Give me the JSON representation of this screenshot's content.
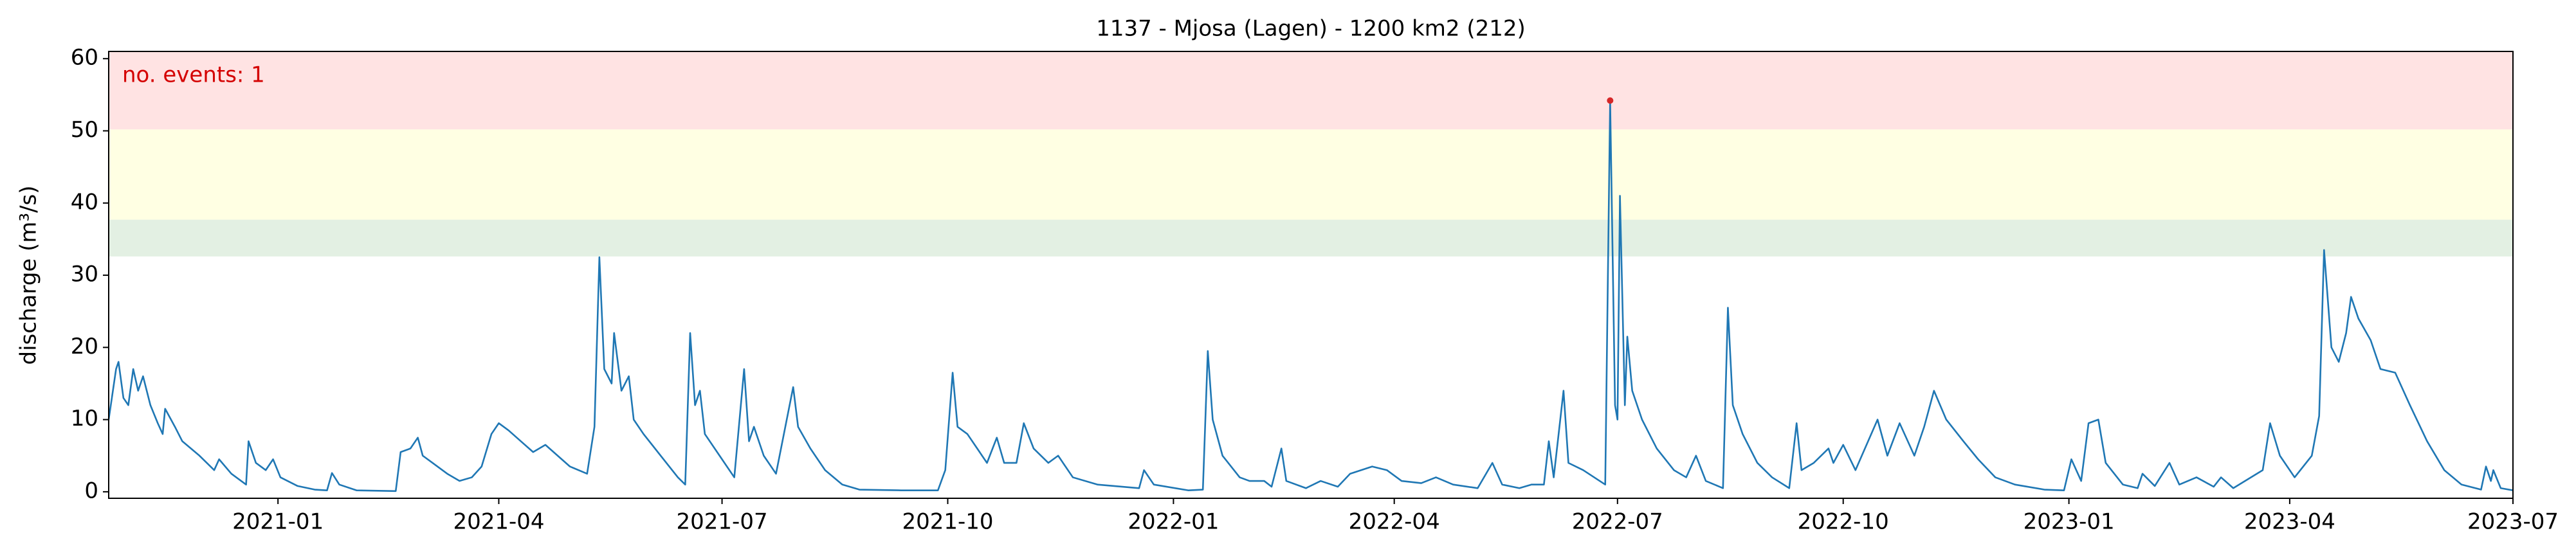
{
  "chart_data": {
    "type": "line",
    "title": "1137 - Mjosa (Lagen) - 1200 km2 (212)",
    "ylabel": "discharge (m³/s)",
    "annotation": "no. events: 1",
    "annotation_color": "#d40000",
    "color": "#1f77b4",
    "xlim": [
      "2020-10-24",
      "2023-07-01"
    ],
    "ylim": [
      -0.9,
      61
    ],
    "yticks": [
      0,
      10,
      20,
      30,
      40,
      50,
      60
    ],
    "xticks": [
      {
        "value": "2021-01-01",
        "label": "2021-01"
      },
      {
        "value": "2021-04-01",
        "label": "2021-04"
      },
      {
        "value": "2021-07-01",
        "label": "2021-07"
      },
      {
        "value": "2021-10-01",
        "label": "2021-10"
      },
      {
        "value": "2022-01-01",
        "label": "2022-01"
      },
      {
        "value": "2022-04-01",
        "label": "2022-04"
      },
      {
        "value": "2022-07-01",
        "label": "2022-07"
      },
      {
        "value": "2022-10-01",
        "label": "2022-10"
      },
      {
        "value": "2023-01-01",
        "label": "2023-01"
      },
      {
        "value": "2023-04-01",
        "label": "2023-04"
      },
      {
        "value": "2023-07-01",
        "label": "2023-07"
      }
    ],
    "bands": [
      {
        "lower": 32.6,
        "upper": 37.7,
        "color": "#e3f0e3"
      },
      {
        "lower": 37.7,
        "upper": 50.2,
        "color": "#ffffe3"
      },
      {
        "lower": 50.2,
        "upper": 61,
        "color": "#ffe3e3"
      }
    ],
    "events": {
      "x": [
        "2022-06-28"
      ],
      "values": [
        54.2
      ],
      "color": "#d62728"
    },
    "x": [
      "2020-10-24",
      "2020-10-27",
      "2020-10-28",
      "2020-10-30",
      "2020-11-01",
      "2020-11-03",
      "2020-11-05",
      "2020-11-07",
      "2020-11-10",
      "2020-11-13",
      "2020-11-15",
      "2020-11-16",
      "2020-11-20",
      "2020-11-23",
      "2020-11-30",
      "2020-12-06",
      "2020-12-08",
      "2020-12-13",
      "2020-12-17",
      "2020-12-19",
      "2020-12-20",
      "2020-12-23",
      "2020-12-27",
      "2020-12-30",
      "2021-01-02",
      "2021-01-09",
      "2021-01-16",
      "2021-01-21",
      "2021-01-23",
      "2021-01-26",
      "2021-02-02",
      "2021-02-18",
      "2021-02-20",
      "2021-02-24",
      "2021-02-27",
      "2021-03-01",
      "2021-03-05",
      "2021-03-11",
      "2021-03-16",
      "2021-03-21",
      "2021-03-25",
      "2021-03-29",
      "2021-04-01",
      "2021-04-05",
      "2021-04-10",
      "2021-04-15",
      "2021-04-20",
      "2021-04-25",
      "2021-04-30",
      "2021-05-07",
      "2021-05-10",
      "2021-05-12",
      "2021-05-14",
      "2021-05-17",
      "2021-05-18",
      "2021-05-21",
      "2021-05-24",
      "2021-05-26",
      "2021-05-30",
      "2021-06-06",
      "2021-06-13",
      "2021-06-16",
      "2021-06-18",
      "2021-06-20",
      "2021-06-22",
      "2021-06-24",
      "2021-06-30",
      "2021-07-06",
      "2021-07-10",
      "2021-07-12",
      "2021-07-14",
      "2021-07-18",
      "2021-07-23",
      "2021-07-30",
      "2021-08-01",
      "2021-08-06",
      "2021-08-12",
      "2021-08-19",
      "2021-08-26",
      "2021-09-12",
      "2021-09-27",
      "2021-09-30",
      "2021-10-03",
      "2021-10-05",
      "2021-10-09",
      "2021-10-13",
      "2021-10-17",
      "2021-10-21",
      "2021-10-24",
      "2021-10-29",
      "2021-11-01",
      "2021-11-05",
      "2021-11-11",
      "2021-11-15",
      "2021-11-21",
      "2021-12-01",
      "2021-12-18",
      "2021-12-20",
      "2021-12-24",
      "2022-01-07",
      "2022-01-13",
      "2022-01-15",
      "2022-01-17",
      "2022-01-21",
      "2022-01-28",
      "2022-02-01",
      "2022-02-07",
      "2022-02-10",
      "2022-02-14",
      "2022-02-16",
      "2022-02-24",
      "2022-03-02",
      "2022-03-09",
      "2022-03-14",
      "2022-03-23",
      "2022-03-29",
      "2022-04-04",
      "2022-04-12",
      "2022-04-18",
      "2022-04-25",
      "2022-05-05",
      "2022-05-11",
      "2022-05-15",
      "2022-05-22",
      "2022-05-27",
      "2022-06-01",
      "2022-06-03",
      "2022-06-05",
      "2022-06-09",
      "2022-06-11",
      "2022-06-17",
      "2022-06-26",
      "2022-06-28",
      "2022-06-30",
      "2022-07-01",
      "2022-07-02",
      "2022-07-04",
      "2022-07-05",
      "2022-07-07",
      "2022-07-11",
      "2022-07-17",
      "2022-07-24",
      "2022-07-29",
      "2022-08-02",
      "2022-08-06",
      "2022-08-13",
      "2022-08-15",
      "2022-08-17",
      "2022-08-21",
      "2022-08-27",
      "2022-09-02",
      "2022-09-09",
      "2022-09-12",
      "2022-09-14",
      "2022-09-19",
      "2022-09-25",
      "2022-09-27",
      "2022-10-01",
      "2022-10-06",
      "2022-10-15",
      "2022-10-19",
      "2022-10-24",
      "2022-10-30",
      "2022-11-03",
      "2022-11-07",
      "2022-11-12",
      "2022-11-19",
      "2022-11-25",
      "2022-12-02",
      "2022-12-10",
      "2022-12-22",
      "2022-12-30",
      "2023-01-02",
      "2023-01-06",
      "2023-01-09",
      "2023-01-13",
      "2023-01-16",
      "2023-01-23",
      "2023-01-29",
      "2023-01-31",
      "2023-02-05",
      "2023-02-11",
      "2023-02-15",
      "2023-02-22",
      "2023-03-01",
      "2023-03-04",
      "2023-03-09",
      "2023-03-21",
      "2023-03-24",
      "2023-03-28",
      "2023-04-03",
      "2023-04-10",
      "2023-04-13",
      "2023-04-15",
      "2023-04-16",
      "2023-04-18",
      "2023-04-21",
      "2023-04-24",
      "2023-04-26",
      "2023-04-29",
      "2023-05-04",
      "2023-05-08",
      "2023-05-14",
      "2023-05-20",
      "2023-05-27",
      "2023-06-03",
      "2023-06-10",
      "2023-06-18",
      "2023-06-20",
      "2023-06-22",
      "2023-06-23",
      "2023-06-26",
      "2023-07-01"
    ],
    "values": [
      10,
      17,
      18,
      13,
      12,
      17,
      14,
      16,
      12,
      9.5,
      8,
      11.5,
      9,
      7,
      5,
      3,
      4.5,
      2.5,
      1.5,
      1,
      7,
      4,
      3,
      4.5,
      2,
      0.8,
      0.3,
      0.2,
      2.6,
      1,
      0.2,
      0.1,
      5.5,
      6,
      7.5,
      5,
      4,
      2.5,
      1.5,
      2,
      3.5,
      8,
      9.5,
      8.5,
      7,
      5.5,
      6.5,
      5,
      3.5,
      2.5,
      9,
      32.5,
      17,
      15,
      22,
      14,
      16,
      10,
      8,
      5,
      2,
      1,
      22,
      12,
      14,
      8,
      5,
      2,
      17,
      7,
      9,
      5,
      2.5,
      14.5,
      9,
      6,
      3,
      1,
      0.3,
      0.2,
      0.2,
      3,
      16.5,
      9,
      8,
      6,
      4,
      7.5,
      4,
      4,
      9.5,
      6,
      4,
      5,
      2,
      1,
      0.5,
      3,
      1,
      0.2,
      0.3,
      19.5,
      10,
      5,
      2,
      1.5,
      1.5,
      0.7,
      6,
      1.5,
      0.5,
      1.5,
      0.7,
      2.5,
      3.5,
      3,
      1.5,
      1.2,
      2,
      1,
      0.5,
      4,
      1,
      0.5,
      1,
      1,
      7,
      2,
      14,
      4,
      3,
      1,
      54.2,
      12,
      10,
      41,
      12,
      21.5,
      14,
      10,
      6,
      3,
      2,
      5,
      1.5,
      0.5,
      25.5,
      12,
      8,
      4,
      2,
      0.5,
      9.5,
      3,
      4,
      6,
      4,
      6.5,
      3,
      10,
      5,
      9.5,
      5,
      9,
      14,
      10,
      7,
      4.5,
      2,
      1,
      0.3,
      0.2,
      4.5,
      1.5,
      9.5,
      10,
      4,
      1,
      0.5,
      2.5,
      0.8,
      4,
      1,
      2,
      0.7,
      2,
      0.5,
      3,
      9.5,
      5,
      2,
      5,
      10.5,
      33.5,
      29,
      20,
      18,
      22,
      27,
      24,
      21,
      17,
      16.5,
      12,
      7,
      3,
      1,
      0.3,
      3.5,
      1.5,
      3,
      0.5,
      0.2
    ]
  }
}
